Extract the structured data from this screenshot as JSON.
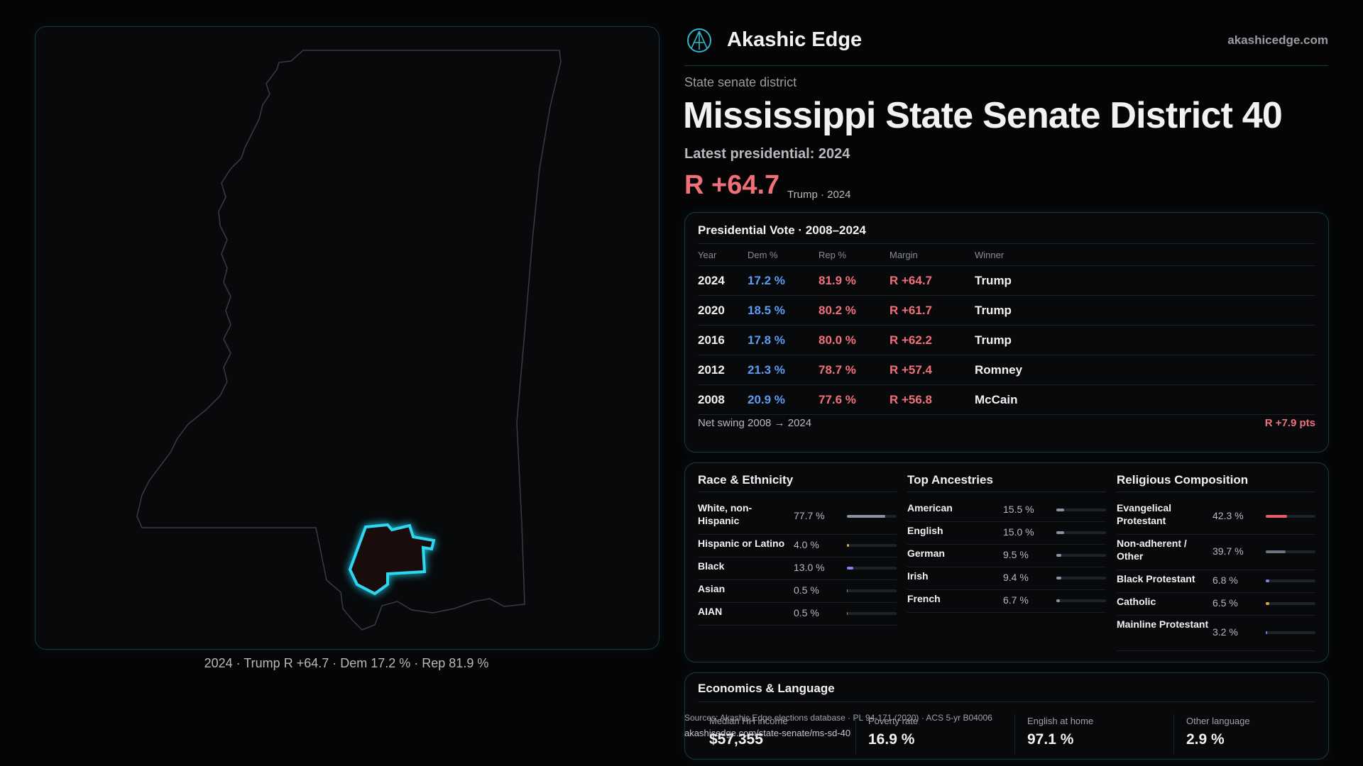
{
  "brand": {
    "name": "Akashic Edge",
    "site": "akashicedge.com"
  },
  "map_caption": "2024 · Trump R +64.7 · Dem 17.2 % · Rep 81.9 %",
  "header": {
    "kicker": "State senate district",
    "title": "Mississippi State Senate District 40",
    "latest": "Latest presidential: 2024",
    "margin": "R +64.7",
    "margin_note": "Trump · 2024"
  },
  "presidential": {
    "title": "Presidential Vote · 2008–2024",
    "columns": [
      "Year",
      "Dem %",
      "Rep %",
      "Margin",
      "Winner"
    ],
    "rows": [
      [
        "2024",
        "17.2 %",
        "81.9 %",
        "R +64.7",
        "Trump"
      ],
      [
        "2020",
        "18.5 %",
        "80.2 %",
        "R +61.7",
        "Trump"
      ],
      [
        "2016",
        "17.8 %",
        "80.0 %",
        "R +62.2",
        "Trump"
      ],
      [
        "2012",
        "21.3 %",
        "78.7 %",
        "R +57.4",
        "Romney"
      ],
      [
        "2008",
        "20.9 %",
        "77.6 %",
        "R +56.8",
        "McCain"
      ]
    ],
    "swing_label": "Net swing 2008 → 2024",
    "swing_value": "R +7.9 pts"
  },
  "demographics": [
    {
      "title": "Race & Ethnicity",
      "items": [
        {
          "label": "White, non-Hispanic",
          "value": 77.7,
          "value_label": "77.7 %",
          "color": "#8b93a3"
        },
        {
          "label": "Hispanic or Latino",
          "value": 4.0,
          "value_label": "4.0 %",
          "color": "#e8a33c"
        },
        {
          "label": "Black",
          "value": 13.0,
          "value_label": "13.0 %",
          "color": "#8b7cf0"
        },
        {
          "label": "Asian",
          "value": 0.5,
          "value_label": "0.5 %",
          "color": "#3fbfa6"
        },
        {
          "label": "AIAN",
          "value": 0.5,
          "value_label": "0.5 %",
          "color": "#e07a4a"
        }
      ]
    },
    {
      "title": "Top Ancestries",
      "items": [
        {
          "label": "American",
          "value": 15.5,
          "value_label": "15.5 %",
          "color": "#8b93a3"
        },
        {
          "label": "English",
          "value": 15.0,
          "value_label": "15.0 %",
          "color": "#8b93a3"
        },
        {
          "label": "German",
          "value": 9.5,
          "value_label": "9.5 %",
          "color": "#8b93a3"
        },
        {
          "label": "Irish",
          "value": 9.4,
          "value_label": "9.4 %",
          "color": "#8b93a3"
        },
        {
          "label": "French",
          "value": 6.7,
          "value_label": "6.7 %",
          "color": "#8b93a3"
        }
      ]
    },
    {
      "title": "Religious Composition",
      "items": [
        {
          "label": "Evangelical Protestant",
          "value": 42.3,
          "value_label": "42.3 %",
          "color": "#e85c6a"
        },
        {
          "label": "Non-adherent / Other",
          "value": 39.7,
          "value_label": "39.7 %",
          "color": "#6b7280"
        },
        {
          "label": "Black Protestant",
          "value": 6.8,
          "value_label": "6.8 %",
          "color": "#8b7cf0"
        },
        {
          "label": "Catholic",
          "value": 6.5,
          "value_label": "6.5 %",
          "color": "#e8a33c"
        },
        {
          "label": "Mainline Protestant",
          "value": 3.2,
          "value_label": "3.2 %",
          "color": "#5b8def"
        }
      ]
    }
  ],
  "economics": {
    "title": "Economics & Language",
    "items": [
      {
        "label": "Median HH income",
        "value": "$57,355"
      },
      {
        "label": "Poverty rate",
        "value": "16.9 %"
      },
      {
        "label": "English at home",
        "value": "97.1 %"
      },
      {
        "label": "Other language",
        "value": "2.9 %"
      }
    ]
  },
  "sources": "Sources: Akashic Edge elections database · PL 94-171 (2020) · ACS 5-yr B04006",
  "url": "akashicedge.com/state-senate/ms-sd-40"
}
